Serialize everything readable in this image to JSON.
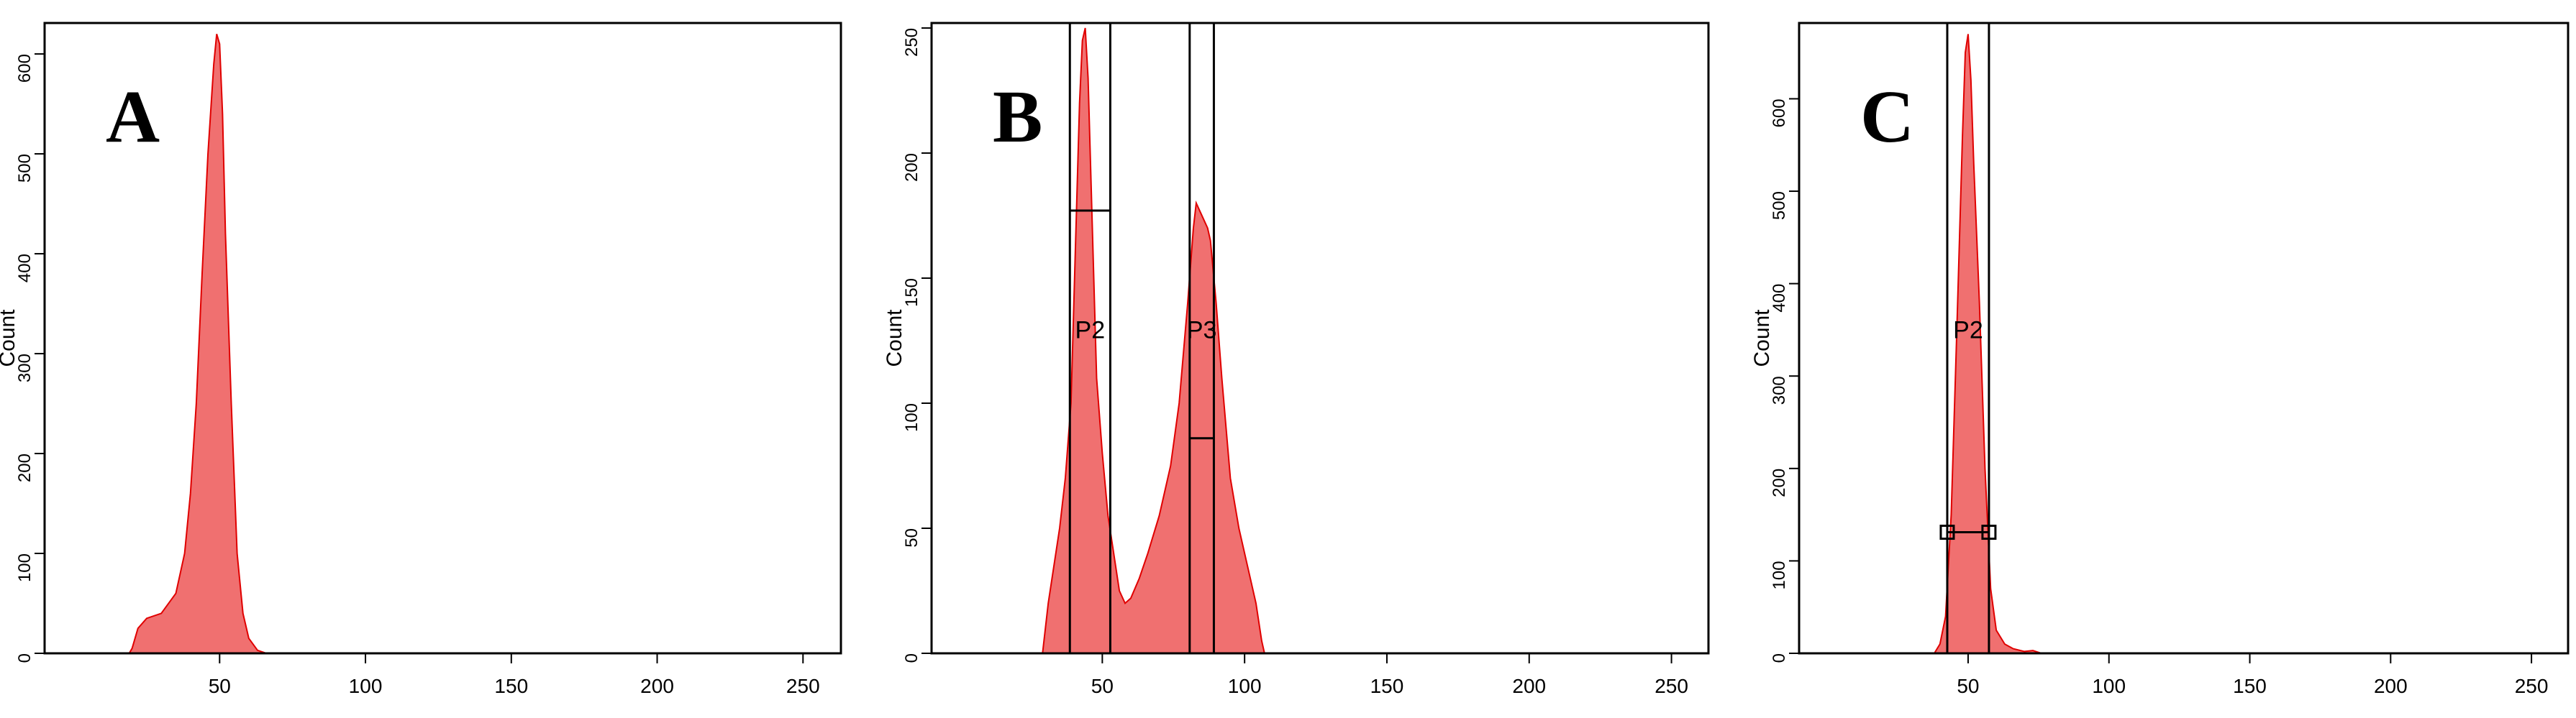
{
  "chart_data": [
    {
      "type": "area",
      "title": "A",
      "ylabel": "Count",
      "color": "#f07070",
      "line_color": "#e00000",
      "x": [
        19,
        20,
        22,
        25,
        30,
        35,
        38,
        40,
        42,
        44,
        46,
        48,
        49,
        50,
        51,
        52,
        54,
        56,
        58,
        60,
        63,
        66
      ],
      "values": [
        0,
        5,
        25,
        35,
        40,
        60,
        100,
        160,
        250,
        380,
        500,
        590,
        620,
        610,
        540,
        420,
        250,
        100,
        40,
        15,
        3,
        0
      ],
      "xlim": [
        -10,
        263
      ],
      "xticks": [
        50,
        100,
        150,
        200,
        250
      ],
      "ylim": [
        0,
        631
      ],
      "yticks": [
        0,
        100,
        200,
        300,
        400,
        500,
        600
      ],
      "gates": []
    },
    {
      "type": "area",
      "title": "B",
      "ylabel": "Count",
      "color": "#f07070",
      "line_color": "#e00000",
      "x": [
        29,
        31,
        33,
        35,
        37,
        39,
        40,
        41,
        42,
        43,
        44,
        45,
        46,
        47,
        48,
        50,
        52,
        54,
        56,
        58,
        60,
        63,
        66,
        70,
        74,
        77,
        80,
        82,
        83,
        85,
        87,
        88,
        90,
        92,
        95,
        98,
        101,
        104,
        106,
        107
      ],
      "values": [
        0,
        20,
        35,
        50,
        70,
        100,
        140,
        180,
        220,
        245,
        250,
        230,
        190,
        150,
        110,
        80,
        55,
        40,
        25,
        20,
        22,
        30,
        40,
        55,
        75,
        100,
        140,
        170,
        180,
        175,
        170,
        165,
        140,
        110,
        70,
        50,
        35,
        20,
        5,
        0
      ],
      "xlim": [
        -10,
        263
      ],
      "xticks": [
        50,
        100,
        150,
        200,
        250
      ],
      "ylim": [
        0,
        252
      ],
      "yticks": [
        0,
        50,
        100,
        150,
        200,
        250
      ],
      "gates": [
        {
          "name": "P2",
          "x": [
            38.6,
            52.8
          ],
          "y": 177
        },
        {
          "name": "P3",
          "x": [
            80.7,
            89.2
          ],
          "y": 86
        }
      ]
    },
    {
      "type": "area",
      "title": "C",
      "ylabel": "Count",
      "color": "#f07070",
      "line_color": "#e00000",
      "x": [
        38,
        40,
        42,
        44,
        46,
        48,
        49,
        50,
        51,
        52,
        54,
        56,
        58,
        60,
        63,
        66,
        70,
        73,
        76
      ],
      "values": [
        0,
        10,
        40,
        150,
        350,
        560,
        650,
        670,
        620,
        530,
        380,
        200,
        70,
        25,
        10,
        5,
        2,
        3,
        0
      ],
      "xlim": [
        -10,
        263
      ],
      "xticks": [
        50,
        100,
        150,
        200,
        250
      ],
      "ylim": [
        0,
        682
      ],
      "yticks": [
        0,
        100,
        200,
        300,
        400,
        500,
        600
      ],
      "gates": [
        {
          "name": "P2",
          "x": [
            42.6,
            57.4
          ],
          "y": 131
        }
      ]
    }
  ]
}
